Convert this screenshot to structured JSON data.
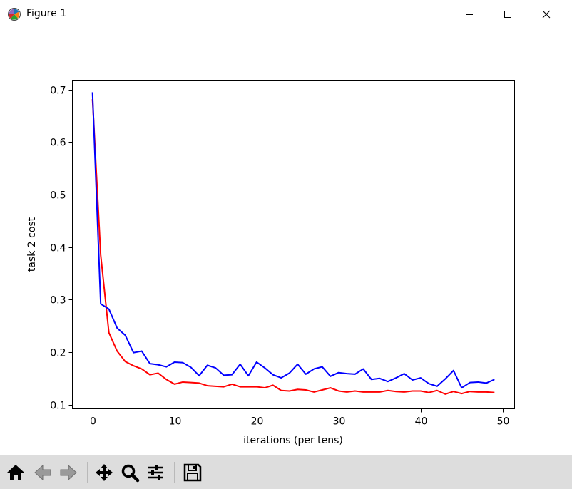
{
  "window": {
    "title": "Figure 1",
    "icon": "matplotlib-icon",
    "controls": [
      "minimize-icon",
      "maximize-icon",
      "close-icon"
    ]
  },
  "toolbar": {
    "buttons": [
      "home-icon",
      "back-arrow-icon",
      "forward-arrow-icon",
      "pan-icon",
      "zoom-icon",
      "configure-subplots-icon",
      "save-icon"
    ]
  },
  "chart_data": {
    "type": "line",
    "title": "",
    "xlabel": "iterations (per tens)",
    "ylabel": "task 2 cost",
    "xlim": [
      -2.45,
      51.45
    ],
    "ylim": [
      0.092,
      0.718
    ],
    "xticks": [
      0,
      10,
      20,
      30,
      40,
      50
    ],
    "xtick_labels": [
      "0",
      "10",
      "20",
      "30",
      "40",
      "50"
    ],
    "yticks": [
      0.1,
      0.2,
      0.3,
      0.4,
      0.5,
      0.6,
      0.7
    ],
    "ytick_labels": [
      "0.1",
      "0.2",
      "0.3",
      "0.4",
      "0.5",
      "0.6",
      "0.7"
    ],
    "grid": false,
    "legend": null,
    "x": [
      0,
      1,
      2,
      3,
      4,
      5,
      6,
      7,
      8,
      9,
      10,
      11,
      12,
      13,
      14,
      15,
      16,
      17,
      18,
      19,
      20,
      21,
      22,
      23,
      24,
      25,
      26,
      27,
      28,
      29,
      30,
      31,
      32,
      33,
      34,
      35,
      36,
      37,
      38,
      39,
      40,
      41,
      42,
      43,
      44,
      45,
      46,
      47,
      48,
      49
    ],
    "series": [
      {
        "color": "#ff0000",
        "values": [
          0.682,
          0.385,
          0.237,
          0.202,
          0.182,
          0.174,
          0.168,
          0.157,
          0.16,
          0.148,
          0.139,
          0.143,
          0.142,
          0.141,
          0.136,
          0.135,
          0.134,
          0.139,
          0.134,
          0.134,
          0.134,
          0.132,
          0.137,
          0.127,
          0.126,
          0.129,
          0.128,
          0.124,
          0.128,
          0.132,
          0.126,
          0.124,
          0.126,
          0.124,
          0.124,
          0.124,
          0.127,
          0.125,
          0.124,
          0.126,
          0.126,
          0.123,
          0.127,
          0.12,
          0.125,
          0.121,
          0.125,
          0.124,
          0.124,
          0.123
        ]
      },
      {
        "color": "#0000ff",
        "values": [
          0.695,
          0.292,
          0.282,
          0.246,
          0.232,
          0.199,
          0.202,
          0.178,
          0.176,
          0.172,
          0.181,
          0.18,
          0.171,
          0.155,
          0.175,
          0.17,
          0.156,
          0.157,
          0.177,
          0.155,
          0.181,
          0.17,
          0.157,
          0.151,
          0.16,
          0.177,
          0.158,
          0.168,
          0.172,
          0.154,
          0.161,
          0.159,
          0.158,
          0.168,
          0.148,
          0.15,
          0.144,
          0.151,
          0.159,
          0.147,
          0.151,
          0.14,
          0.135,
          0.149,
          0.165,
          0.132,
          0.142,
          0.143,
          0.141,
          0.148
        ]
      }
    ]
  }
}
